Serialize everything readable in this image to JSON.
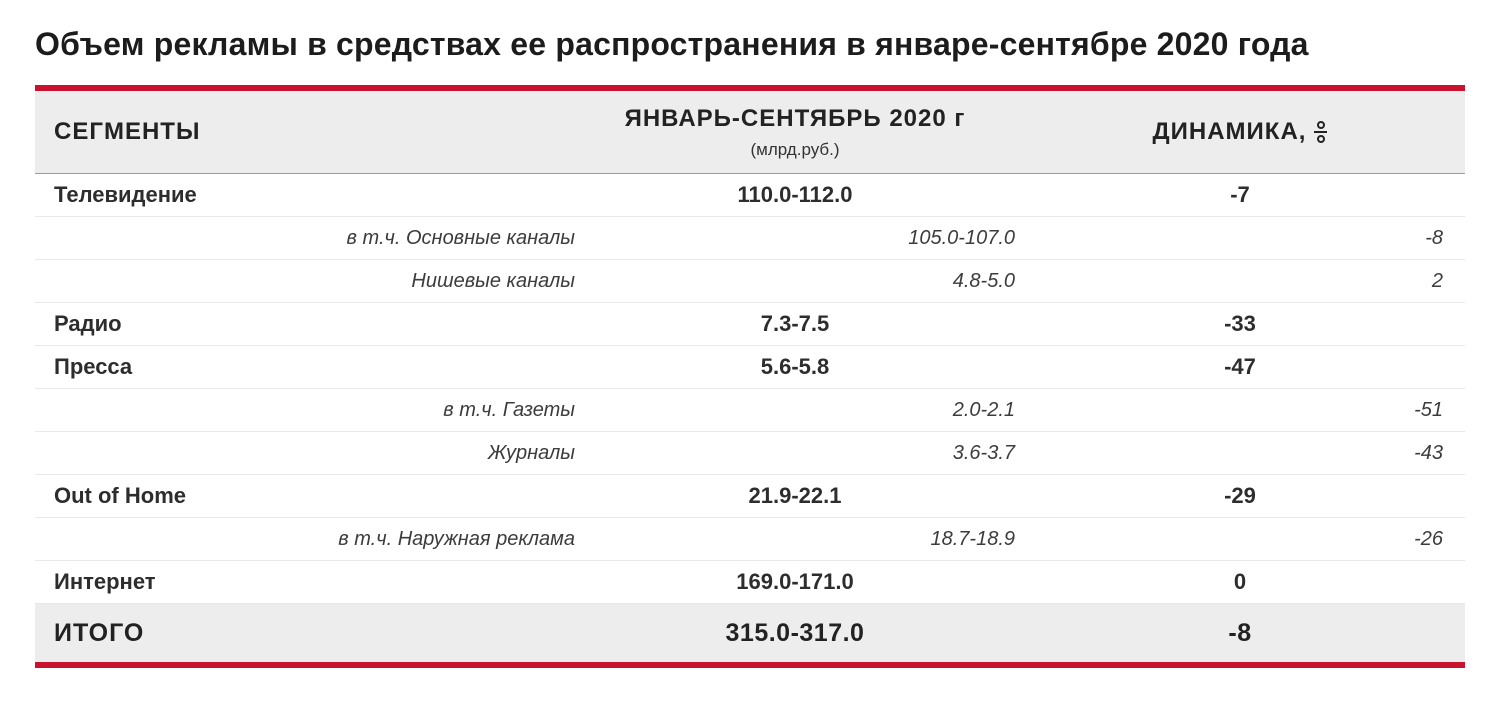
{
  "page": {
    "title": "Объем рекламы в средствах ее распространения в январе-сентябре 2020 года"
  },
  "table": {
    "columns": {
      "segments": "СЕГМЕНТЫ",
      "period": "ЯНВАРЬ-СЕНТЯБРЬ 2020 г",
      "period_unit": "(млрд.руб.)",
      "dynamics": "ДИНАМИКА,",
      "dynamics_unit": "%"
    },
    "rows": [
      {
        "type": "main",
        "label": "Телевидение",
        "value": "110.0-112.0",
        "dynamics": "-7"
      },
      {
        "type": "sub",
        "label": "в т.ч. Основные каналы",
        "value": "105.0-107.0",
        "dynamics": "-8"
      },
      {
        "type": "sub",
        "label": "Нишевые каналы",
        "value": "4.8-5.0",
        "dynamics": "2"
      },
      {
        "type": "main",
        "label": "Радио",
        "value": "7.3-7.5",
        "dynamics": "-33"
      },
      {
        "type": "main",
        "label": "Пресса",
        "value": "5.6-5.8",
        "dynamics": "-47"
      },
      {
        "type": "sub",
        "label": "в т.ч. Газеты",
        "value": "2.0-2.1",
        "dynamics": "-51"
      },
      {
        "type": "sub",
        "label": "Журналы",
        "value": "3.6-3.7",
        "dynamics": "-43"
      },
      {
        "type": "main",
        "label": "Out of Home",
        "value": "21.9-22.1",
        "dynamics": "-29"
      },
      {
        "type": "sub",
        "label": "в т.ч. Наружная реклама",
        "value": "18.7-18.9",
        "dynamics": "-26"
      },
      {
        "type": "main",
        "label": "Интернет",
        "value": "169.0-171.0",
        "dynamics": "0"
      }
    ],
    "total": {
      "label": "ИТОГО",
      "value": "315.0-317.0",
      "dynamics": "-8"
    }
  },
  "chart_data": {
    "type": "table",
    "title": "Объем рекламы в средствах ее распространения в январе-сентябре 2020 года",
    "columns": [
      "СЕГМЕНТЫ",
      "ЯНВАРЬ-СЕНТЯБРЬ 2020 г (млрд.руб.)",
      "ДИНАМИКА, %"
    ],
    "rows": [
      [
        "Телевидение",
        "110.0-112.0",
        -7
      ],
      [
        "в т.ч. Основные каналы",
        "105.0-107.0",
        -8
      ],
      [
        "Нишевые каналы",
        "4.8-5.0",
        2
      ],
      [
        "Радио",
        "7.3-7.5",
        -33
      ],
      [
        "Пресса",
        "5.6-5.8",
        -47
      ],
      [
        "в т.ч. Газеты",
        "2.0-2.1",
        -51
      ],
      [
        "Журналы",
        "3.6-3.7",
        -43
      ],
      [
        "Out of Home",
        "21.9-22.1",
        -29
      ],
      [
        "в т.ч. Наружная реклама",
        "18.7-18.9",
        -26
      ],
      [
        "Интернет",
        "169.0-171.0",
        0
      ],
      [
        "ИТОГО",
        "315.0-317.0",
        -8
      ]
    ]
  },
  "colors": {
    "accent_red": "#C9122E",
    "header_bg": "#EDEDEE",
    "total_bg": "#EDEDEE",
    "row_border": "#E9E9E9"
  }
}
